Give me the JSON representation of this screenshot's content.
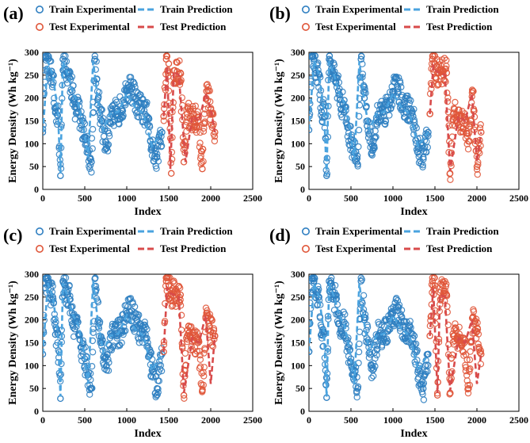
{
  "colors": {
    "train": "#2f7fc1",
    "test": "#e0573a",
    "train_line": "#4aa3df",
    "test_line": "#d84b4b"
  },
  "chart_data": [
    {
      "panel": "(a)",
      "type": "scatter",
      "xlabel": "Index",
      "ylabel": "Energy Density (Wh kg⁻¹)",
      "xlim": [
        0,
        2500
      ],
      "ylim": [
        0,
        300
      ],
      "xticks": [
        "0",
        "500",
        "1000",
        "1500",
        "2000",
        "2500"
      ],
      "yticks": [
        "0",
        "50",
        "100",
        "150",
        "200",
        "250",
        "300"
      ],
      "legend": [
        "Train Experimental",
        "Test Experimental",
        "Train Prediction",
        "Test Prediction"
      ],
      "test_start_index": 1440,
      "series": [
        {
          "name": "Train Experimental",
          "x": [
            0,
            30,
            60,
            90,
            120,
            150,
            180,
            210,
            240,
            260,
            290,
            320,
            350,
            380,
            420,
            460,
            500,
            540,
            580,
            620,
            660,
            700,
            760,
            820,
            880,
            940,
            1000,
            1060,
            1120,
            1180,
            1240,
            1300,
            1360,
            1420
          ],
          "values": [
            125,
            290,
            285,
            255,
            250,
            168,
            172,
            30,
            285,
            280,
            255,
            245,
            215,
            180,
            195,
            140,
            115,
            80,
            60,
            285,
            200,
            150,
            90,
            165,
            170,
            175,
            215,
            220,
            185,
            175,
            160,
            90,
            70,
            125
          ]
        },
        {
          "name": "Test Experimental",
          "x": [
            1440,
            1470,
            1500,
            1530,
            1560,
            1600,
            1640,
            1680,
            1720,
            1760,
            1800,
            1850,
            1900,
            1950,
            2000,
            2050
          ],
          "values": [
            160,
            285,
            275,
            35,
            260,
            258,
            255,
            60,
            165,
            160,
            155,
            150,
            45,
            215,
            175,
            125
          ]
        },
        {
          "name": "Train Prediction",
          "x": [
            0,
            60,
            120,
            180,
            210,
            240,
            300,
            360,
            420,
            480,
            540,
            600,
            660,
            720,
            800,
            900,
            1000,
            1100,
            1200,
            1300,
            1420
          ],
          "values": [
            125,
            280,
            250,
            170,
            35,
            280,
            250,
            210,
            190,
            140,
            70,
            280,
            190,
            130,
            165,
            170,
            210,
            180,
            165,
            95,
            125
          ]
        },
        {
          "name": "Test Prediction",
          "x": [
            1440,
            1480,
            1520,
            1560,
            1620,
            1700,
            1780,
            1860,
            1940,
            2000,
            2050
          ],
          "values": [
            160,
            270,
            45,
            258,
            250,
            60,
            160,
            150,
            210,
            175,
            125
          ]
        }
      ]
    },
    {
      "panel": "(b)",
      "type": "scatter",
      "xlabel": "Index",
      "ylabel": "Energy Density (Wh kg⁻¹)",
      "xlim": [
        0,
        2500
      ],
      "ylim": [
        0,
        300
      ],
      "xticks": [
        "0",
        "500",
        "1000",
        "1500",
        "2000",
        "2500"
      ],
      "yticks": [
        "0",
        "50",
        "100",
        "150",
        "200",
        "250",
        "300"
      ],
      "legend": [
        "Train Experimental",
        "Test Experimental",
        "Train Prediction",
        "Test Prediction"
      ],
      "test_start_index": 1440,
      "series": [
        {
          "name": "Train Experimental",
          "x": [
            0,
            30,
            60,
            90,
            120,
            150,
            180,
            210,
            240,
            260,
            290,
            320,
            350,
            380,
            420,
            460,
            500,
            540,
            580,
            620,
            660,
            700,
            760,
            820,
            880,
            940,
            1000,
            1060,
            1120,
            1180,
            1240,
            1300,
            1360,
            1420
          ],
          "values": [
            130,
            290,
            285,
            255,
            252,
            170,
            172,
            30,
            285,
            280,
            255,
            245,
            215,
            175,
            195,
            135,
            110,
            80,
            55,
            285,
            200,
            150,
            85,
            165,
            170,
            175,
            215,
            220,
            185,
            175,
            160,
            90,
            70,
            125
          ]
        },
        {
          "name": "Test Experimental",
          "x": [
            1440,
            1470,
            1500,
            1530,
            1560,
            1600,
            1640,
            1680,
            1720,
            1760,
            1800,
            1850,
            1900,
            1950,
            2000,
            2050
          ],
          "values": [
            165,
            285,
            275,
            255,
            260,
            258,
            255,
            35,
            165,
            160,
            155,
            150,
            105,
            215,
            50,
            125
          ]
        },
        {
          "name": "Train Prediction",
          "x": [
            0,
            60,
            120,
            180,
            210,
            240,
            300,
            360,
            420,
            480,
            540,
            600,
            660,
            720,
            800,
            900,
            1000,
            1100,
            1200,
            1300,
            1420
          ],
          "values": [
            130,
            282,
            252,
            170,
            30,
            280,
            250,
            210,
            190,
            140,
            65,
            280,
            190,
            130,
            165,
            170,
            210,
            180,
            165,
            95,
            125
          ]
        },
        {
          "name": "Test Prediction",
          "x": [
            1440,
            1480,
            1520,
            1560,
            1620,
            1680,
            1780,
            1860,
            1940,
            2000,
            2050
          ],
          "values": [
            165,
            270,
            258,
            255,
            250,
            40,
            160,
            150,
            210,
            60,
            125
          ]
        }
      ]
    },
    {
      "panel": "(c)",
      "type": "scatter",
      "xlabel": "Index",
      "ylabel": "Energy Density (Wh kg⁻¹)",
      "xlim": [
        0,
        2500
      ],
      "ylim": [
        0,
        300
      ],
      "xticks": [
        "0",
        "500",
        "1000",
        "1500",
        "2000",
        "2500"
      ],
      "yticks": [
        "0",
        "50",
        "100",
        "150",
        "200",
        "250",
        "300"
      ],
      "legend": [
        "Train Experimental",
        "Test Experimental",
        "Train Prediction",
        "Test Prediction"
      ],
      "test_start_index": 1440,
      "series": [
        {
          "name": "Train Experimental",
          "x": [
            0,
            30,
            60,
            90,
            120,
            150,
            180,
            210,
            240,
            260,
            290,
            320,
            350,
            380,
            420,
            460,
            500,
            540,
            580,
            620,
            660,
            700,
            760,
            820,
            880,
            940,
            1000,
            1060,
            1120,
            1180,
            1240,
            1300,
            1360,
            1420
          ],
          "values": [
            125,
            290,
            285,
            255,
            250,
            168,
            172,
            28,
            285,
            280,
            255,
            245,
            215,
            180,
            195,
            140,
            115,
            80,
            50,
            290,
            200,
            150,
            90,
            165,
            170,
            175,
            215,
            220,
            185,
            175,
            160,
            90,
            50,
            125
          ]
        },
        {
          "name": "Test Experimental",
          "x": [
            1440,
            1470,
            1500,
            1530,
            1560,
            1600,
            1640,
            1680,
            1720,
            1760,
            1800,
            1850,
            1900,
            1950,
            2000,
            2050
          ],
          "values": [
            130,
            285,
            275,
            255,
            260,
            258,
            255,
            35,
            165,
            160,
            155,
            150,
            45,
            215,
            175,
            165
          ]
        },
        {
          "name": "Train Prediction",
          "x": [
            0,
            60,
            120,
            180,
            210,
            240,
            300,
            360,
            420,
            480,
            540,
            600,
            660,
            720,
            800,
            900,
            1000,
            1100,
            1200,
            1300,
            1420
          ],
          "values": [
            125,
            280,
            250,
            170,
            32,
            280,
            250,
            210,
            190,
            140,
            60,
            285,
            190,
            130,
            165,
            170,
            210,
            180,
            165,
            90,
            125
          ]
        },
        {
          "name": "Test Prediction",
          "x": [
            1440,
            1480,
            1520,
            1560,
            1620,
            1680,
            1780,
            1860,
            1940,
            2000,
            2050
          ],
          "values": [
            130,
            270,
            258,
            255,
            250,
            40,
            160,
            150,
            210,
            60,
            165
          ]
        }
      ]
    },
    {
      "panel": "(d)",
      "type": "scatter",
      "xlabel": "Index",
      "ylabel": "Energy Density (Wh kg⁻¹)",
      "xlim": [
        0,
        2500
      ],
      "ylim": [
        0,
        300
      ],
      "xticks": [
        "0",
        "500",
        "1000",
        "1500",
        "2000",
        "2500"
      ],
      "yticks": [
        "0",
        "50",
        "100",
        "150",
        "200",
        "250",
        "300"
      ],
      "legend": [
        "Train Experimental",
        "Test Experimental",
        "Train Prediction",
        "Test Prediction"
      ],
      "test_start_index": 1440,
      "series": [
        {
          "name": "Train Experimental",
          "x": [
            0,
            30,
            60,
            90,
            120,
            150,
            180,
            210,
            240,
            260,
            290,
            320,
            350,
            380,
            420,
            460,
            500,
            540,
            580,
            620,
            660,
            700,
            760,
            820,
            880,
            940,
            1000,
            1060,
            1120,
            1180,
            1240,
            1300,
            1360,
            1420
          ],
          "values": [
            130,
            290,
            285,
            255,
            250,
            168,
            172,
            30,
            285,
            280,
            255,
            245,
            215,
            180,
            195,
            140,
            115,
            80,
            50,
            285,
            200,
            150,
            90,
            165,
            170,
            175,
            215,
            220,
            185,
            175,
            160,
            90,
            50,
            125
          ]
        },
        {
          "name": "Test Experimental",
          "x": [
            1440,
            1470,
            1500,
            1530,
            1560,
            1600,
            1640,
            1680,
            1720,
            1760,
            1800,
            1850,
            1900,
            1950,
            2000,
            2050
          ],
          "values": [
            165,
            285,
            275,
            35,
            260,
            258,
            255,
            40,
            165,
            160,
            155,
            150,
            50,
            205,
            175,
            125
          ]
        },
        {
          "name": "Train Prediction",
          "x": [
            0,
            60,
            120,
            180,
            210,
            240,
            300,
            360,
            420,
            480,
            540,
            600,
            660,
            720,
            800,
            900,
            1000,
            1100,
            1200,
            1300,
            1420
          ],
          "values": [
            130,
            280,
            250,
            170,
            32,
            280,
            250,
            210,
            190,
            140,
            60,
            280,
            190,
            130,
            165,
            170,
            210,
            180,
            165,
            90,
            125
          ]
        },
        {
          "name": "Test Prediction",
          "x": [
            1440,
            1480,
            1530,
            1560,
            1620,
            1680,
            1780,
            1860,
            1940,
            2000,
            2050
          ],
          "values": [
            165,
            270,
            40,
            255,
            250,
            45,
            160,
            150,
            200,
            60,
            125
          ]
        }
      ]
    }
  ]
}
